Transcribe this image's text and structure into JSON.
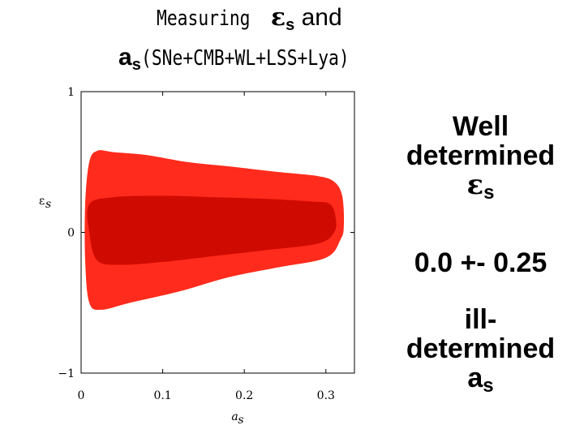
{
  "title": {
    "line1_prefix": "Measuring ",
    "line1_symbol": "ε",
    "line1_symbol_sub": "s",
    "line1_suffix": " and",
    "line2_symbol": "a",
    "line2_symbol_sub": "s",
    "line2_suffix": "(SNe+CMB+WL+LSS+Lya)"
  },
  "side_text": {
    "well_line1": "Well",
    "well_line2": "determined",
    "well_symbol": "ε",
    "well_symbol_sub": "s",
    "value": "0.0 +- 0.25",
    "ill_line1": "ill-",
    "ill_line2": "determined",
    "ill_symbol": "a",
    "ill_symbol_sub": "s"
  },
  "colors": {
    "outer_contour": "#ff2b1c",
    "inner_contour": "#cf0a00",
    "axes": "#000000"
  },
  "chart_data": {
    "type": "contour",
    "title": "",
    "xlabel": "a",
    "xlabel_sub": "s",
    "ylabel": "ε",
    "ylabel_sub": "s",
    "xlim": [
      0,
      0.335
    ],
    "ylim": [
      -1,
      1
    ],
    "x_ticks": [
      0,
      0.1,
      0.2,
      0.3
    ],
    "x_tick_labels": [
      "0",
      "0.1",
      "0.2",
      "0.3"
    ],
    "y_ticks": [
      -1,
      0,
      1
    ],
    "y_tick_labels": [
      "−1",
      "0",
      "1"
    ],
    "contours": [
      {
        "level": "outer",
        "points": [
          [
            0.01,
            0.5
          ],
          [
            0.02,
            0.58
          ],
          [
            0.04,
            0.57
          ],
          [
            0.08,
            0.55
          ],
          [
            0.13,
            0.5
          ],
          [
            0.18,
            0.47
          ],
          [
            0.24,
            0.43
          ],
          [
            0.29,
            0.4
          ],
          [
            0.31,
            0.36
          ],
          [
            0.32,
            0.26
          ],
          [
            0.322,
            0.05
          ],
          [
            0.318,
            -0.05
          ],
          [
            0.3,
            -0.18
          ],
          [
            0.24,
            -0.25
          ],
          [
            0.18,
            -0.32
          ],
          [
            0.12,
            -0.42
          ],
          [
            0.06,
            -0.5
          ],
          [
            0.025,
            -0.55
          ],
          [
            0.01,
            -0.5
          ],
          [
            0.005,
            -0.2
          ],
          [
            0.005,
            0.2
          ]
        ]
      },
      {
        "level": "inner",
        "points": [
          [
            0.01,
            0.2
          ],
          [
            0.04,
            0.25
          ],
          [
            0.1,
            0.26
          ],
          [
            0.16,
            0.25
          ],
          [
            0.22,
            0.24
          ],
          [
            0.28,
            0.22
          ],
          [
            0.305,
            0.2
          ],
          [
            0.312,
            0.1
          ],
          [
            0.31,
            0.0
          ],
          [
            0.29,
            -0.08
          ],
          [
            0.22,
            -0.13
          ],
          [
            0.16,
            -0.17
          ],
          [
            0.1,
            -0.21
          ],
          [
            0.05,
            -0.23
          ],
          [
            0.02,
            -0.2
          ],
          [
            0.01,
            0.0
          ]
        ]
      }
    ]
  }
}
